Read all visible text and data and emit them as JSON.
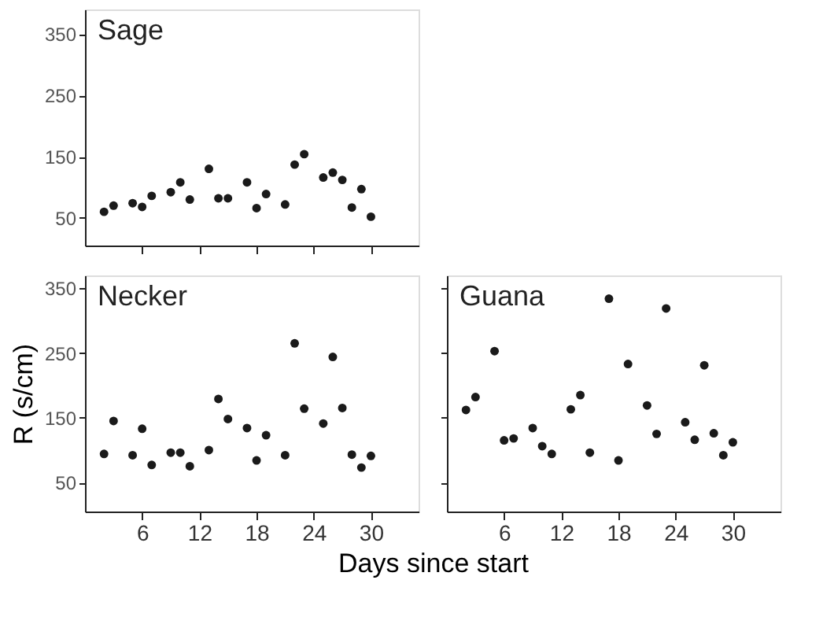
{
  "chart_data": [
    {
      "type": "scatter",
      "title": "Sage",
      "x": [
        2,
        3,
        5,
        6,
        7,
        9,
        10,
        11,
        13,
        14,
        15,
        17,
        18,
        19,
        21,
        22,
        23,
        25,
        26,
        27,
        28,
        29,
        30
      ],
      "values": [
        60,
        70,
        74,
        68,
        86,
        92,
        108,
        80,
        130,
        82,
        82,
        108,
        66,
        89,
        72,
        137,
        154,
        116,
        124,
        112,
        67,
        97,
        52
      ],
      "color": "#1a1a1a",
      "xlim": [
        0,
        35
      ],
      "xticks": [
        {
          "value": 6,
          "label": null
        },
        {
          "value": 12,
          "label": null
        },
        {
          "value": 18,
          "label": null
        },
        {
          "value": 24,
          "label": null
        },
        {
          "value": 30,
          "label": null
        }
      ],
      "ylim": [
        5,
        390
      ],
      "yticks": [
        50,
        150,
        250,
        350
      ],
      "tick_labels": "y",
      "marker": "circle",
      "grid": false
    },
    {
      "type": "scatter",
      "title": "Necker",
      "xlabel": "Days since start",
      "ylabel": "R (s/cm)",
      "x": [
        2,
        3,
        5,
        6,
        7,
        9,
        10,
        11,
        13,
        14,
        15,
        17,
        18,
        19,
        21,
        22,
        23,
        25,
        26,
        27,
        28,
        29,
        30
      ],
      "values": [
        94,
        145,
        92,
        133,
        77,
        96,
        96,
        75,
        100,
        179,
        148,
        134,
        84,
        123,
        92,
        265,
        164,
        141,
        244,
        165,
        93,
        73,
        91
      ],
      "color": "#1a1a1a",
      "xlim": [
        0,
        35
      ],
      "xticks": [
        6,
        12,
        18,
        24,
        30
      ],
      "ylim": [
        5,
        370
      ],
      "yticks": [
        50,
        150,
        250,
        350
      ],
      "marker": "circle",
      "grid": false
    },
    {
      "type": "scatter",
      "title": "Guana",
      "x": [
        2,
        3,
        5,
        6,
        7,
        9,
        10,
        11,
        13,
        14,
        15,
        17,
        18,
        19,
        21,
        22,
        23,
        25,
        26,
        27,
        28,
        29,
        30
      ],
      "values": [
        162,
        182,
        253,
        115,
        118,
        134,
        106,
        94,
        163,
        185,
        96,
        334,
        84,
        233,
        169,
        125,
        319,
        143,
        116,
        231,
        126,
        92,
        112
      ],
      "color": "#1a1a1a",
      "xlim": [
        0,
        35
      ],
      "xticks": [
        6,
        12,
        18,
        24,
        30
      ],
      "ylim": [
        5,
        370
      ],
      "yticks": [
        {
          "value": 50,
          "label": null
        },
        {
          "value": 150,
          "label": null
        },
        {
          "value": 250,
          "label": null
        },
        {
          "value": 350,
          "label": null
        }
      ],
      "tick_labels": "x",
      "marker": "circle",
      "grid": false
    }
  ]
}
